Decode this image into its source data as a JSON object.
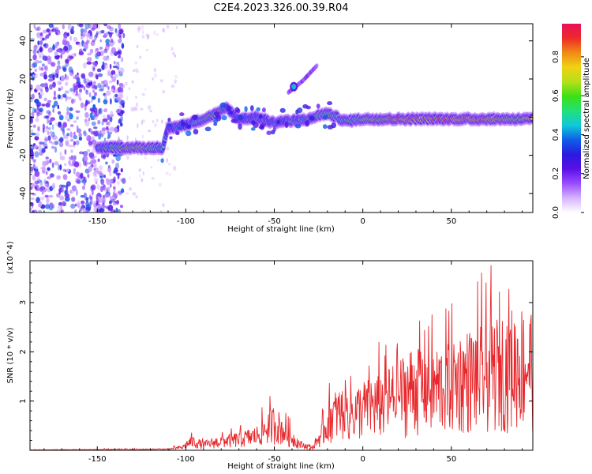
{
  "title": "C2E4.2023.326.00.39.R04",
  "colors": {
    "snr_line": "#e8282c",
    "colormap": [
      "#ffffff",
      "#d6b3ff",
      "#9a4dff",
      "#5a10e6",
      "#2a1ae0",
      "#0f5fe8",
      "#11c8d8",
      "#22e07a",
      "#3ce015",
      "#b5e01a",
      "#f0d214",
      "#f08a16",
      "#ee2a2a",
      "#e8105a"
    ]
  },
  "chart_data": [
    {
      "type": "heatmap",
      "title": "C2E4.2023.326.00.39.R04",
      "xlabel": "Height of straight line (km)",
      "ylabel": "Frequency (Hz)",
      "xlim": [
        -188,
        96
      ],
      "ylim": [
        -50,
        49
      ],
      "xticks": [
        -150,
        -100,
        -50,
        0,
        50
      ],
      "yticks": [
        -40,
        -20,
        0,
        20,
        40
      ],
      "colorbar": {
        "label": "Normalized spectral amplitude",
        "range": [
          0,
          0.97
        ],
        "ticks": [
          "0.0",
          "0.2",
          "0.4",
          "0.6",
          "0.8"
        ],
        "tick_values": [
          0,
          0.2,
          0.4,
          0.6,
          0.8
        ]
      },
      "trace": {
        "x": [
          -150,
          -140,
          -130,
          -120,
          -113,
          -110,
          -100,
          -90,
          -80,
          -77,
          -70,
          -60,
          -50,
          -45,
          -40,
          -30,
          -25,
          -20,
          -10,
          0,
          10,
          20,
          30,
          40,
          50,
          60,
          70,
          80,
          90,
          95
        ],
        "freq": [
          -16,
          -16,
          -16,
          -16,
          -16,
          -6,
          -4,
          -1,
          3,
          5,
          -1,
          0,
          -3,
          -2,
          -2,
          -1,
          1,
          2,
          -2,
          -1,
          -1,
          -1,
          -1,
          -1,
          -1,
          -1,
          -1,
          -1,
          -1,
          -1
        ],
        "amplitude": [
          0.45,
          0.55,
          0.7,
          0.6,
          0.45,
          0.35,
          0.45,
          0.5,
          0.55,
          0.4,
          0.35,
          0.4,
          0.45,
          0.35,
          0.5,
          0.45,
          0.6,
          0.55,
          0.5,
          0.6,
          0.75,
          0.85,
          0.85,
          0.8,
          0.85,
          0.85,
          0.8,
          0.75,
          0.7,
          0.7
        ]
      },
      "branch": {
        "x": [
          -42,
          -38,
          -34,
          -30,
          -26
        ],
        "freq": [
          13,
          16,
          19,
          23,
          27
        ]
      },
      "noise_region": {
        "x_range": [
          -188,
          -135
        ]
      }
    },
    {
      "type": "line",
      "xlabel": "Height of straight line (km)",
      "ylabel": "SNR (10 * v/v)",
      "y_multiplier": "(x10^4)",
      "xlim": [
        -188,
        96
      ],
      "ylim": [
        0,
        3.85
      ],
      "xticks": [
        -150,
        -100,
        -50,
        0,
        50
      ],
      "yticks": [
        1,
        2,
        3
      ],
      "envelope": {
        "x": [
          -188,
          -110,
          -102,
          -97,
          -90,
          -80,
          -70,
          -60,
          -55,
          -50,
          -45,
          -40,
          -35,
          -28,
          -22,
          -18,
          -12,
          -5,
          0,
          10,
          20,
          30,
          40,
          50,
          60,
          70,
          80,
          90,
          96
        ],
        "y": [
          0.01,
          0.03,
          0.08,
          0.25,
          0.15,
          0.25,
          0.3,
          0.4,
          0.6,
          0.75,
          0.55,
          0.35,
          0.15,
          0.08,
          0.55,
          0.95,
          1.05,
          1.05,
          1.15,
          1.3,
          1.5,
          1.8,
          1.7,
          1.9,
          2.0,
          2.1,
          2.3,
          2.4,
          2.4
        ]
      }
    }
  ]
}
